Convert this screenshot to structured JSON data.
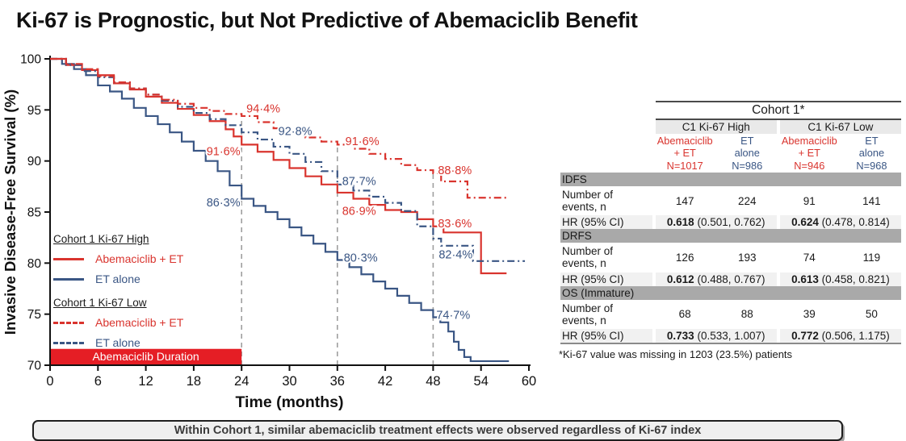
{
  "title": "Ki-67 is Prognostic, but Not Predictive of Abemaciclib Benefit",
  "banner": {
    "text": "Within Cohort 1, similar abemaciclib treatment effects were observed regardless of Ki-67 index"
  },
  "colors": {
    "red": "#d9342e",
    "blue": "#3a5684",
    "duration_bar": "#e51e25",
    "refline": "#9f9f9f",
    "axis": "#111111",
    "section_bg": "#a9a9a9",
    "subheader_bg": "#e9e9e9",
    "hr_row_bg": "#f1f1f1",
    "banner_bg": "#efefef"
  },
  "chart_data": {
    "type": "line",
    "subtype": "kaplan-meier-step",
    "xlabel": "Time (months)",
    "ylabel": "Invasive Disease-Free Survival (%)",
    "xlim": [
      0,
      60
    ],
    "ylim": [
      70,
      100
    ],
    "xticks": [
      0,
      6,
      12,
      18,
      24,
      30,
      36,
      42,
      48,
      54,
      60
    ],
    "yticks": [
      70,
      75,
      80,
      85,
      90,
      95,
      100
    ],
    "grid": false,
    "reflines": [
      {
        "x": 24,
        "top": 94.4
      },
      {
        "x": 36,
        "top": 91.6
      },
      {
        "x": 48,
        "top": 88.8
      }
    ],
    "duration_bar": {
      "label": "Abemaciclib Duration",
      "x_start": 0,
      "x_end": 24,
      "height_pct": 1.6
    },
    "series": [
      {
        "name": "Cohort 1 Ki-67 High — ET alone",
        "color": "blue",
        "dash": "solid",
        "points": [
          [
            0,
            100
          ],
          [
            1.5,
            99.5
          ],
          [
            3,
            99.0
          ],
          [
            4.5,
            98.4
          ],
          [
            6,
            97.4
          ],
          [
            7.5,
            96.8
          ],
          [
            9,
            96.1
          ],
          [
            10.5,
            95.2
          ],
          [
            12,
            94.4
          ],
          [
            13.5,
            93.6
          ],
          [
            15,
            92.8
          ],
          [
            16.5,
            91.9
          ],
          [
            18,
            91.0
          ],
          [
            19.5,
            90.0
          ],
          [
            21,
            89.0
          ],
          [
            22.5,
            87.6
          ],
          [
            24,
            86.3
          ],
          [
            25.5,
            85.6
          ],
          [
            27,
            85.0
          ],
          [
            28.5,
            84.3
          ],
          [
            30,
            83.5
          ],
          [
            31.5,
            82.7
          ],
          [
            33,
            81.9
          ],
          [
            34.5,
            81.1
          ],
          [
            36,
            80.3
          ],
          [
            37.5,
            79.6
          ],
          [
            39,
            78.9
          ],
          [
            40.5,
            78.2
          ],
          [
            42,
            77.5
          ],
          [
            43.5,
            76.8
          ],
          [
            45,
            76.1
          ],
          [
            46.5,
            75.4
          ],
          [
            48,
            74.7
          ],
          [
            48.9,
            74.2
          ],
          [
            49.9,
            73.3
          ],
          [
            50.6,
            72.3
          ],
          [
            51.2,
            71.5
          ],
          [
            51.9,
            70.8
          ],
          [
            52.7,
            70.4
          ],
          [
            57.5,
            70.4
          ]
        ]
      },
      {
        "name": "Cohort 1 Ki-67 High — Abemaciclib + ET",
        "color": "red",
        "dash": "solid",
        "points": [
          [
            0,
            100
          ],
          [
            2,
            99.4
          ],
          [
            4,
            98.9
          ],
          [
            6,
            98.4
          ],
          [
            8,
            97.6
          ],
          [
            10,
            97.0
          ],
          [
            12,
            96.3
          ],
          [
            14,
            95.7
          ],
          [
            16,
            95.1
          ],
          [
            18,
            94.5
          ],
          [
            20,
            93.9
          ],
          [
            22,
            93.1
          ],
          [
            23,
            92.4
          ],
          [
            24,
            91.6
          ],
          [
            26,
            90.9
          ],
          [
            28,
            90.1
          ],
          [
            30,
            89.3
          ],
          [
            32,
            88.5
          ],
          [
            34,
            87.7
          ],
          [
            36,
            86.9
          ],
          [
            38,
            86.3
          ],
          [
            40,
            85.7
          ],
          [
            42,
            85.2
          ],
          [
            44,
            85.0
          ],
          [
            46,
            84.3
          ],
          [
            48,
            83.6
          ],
          [
            49.3,
            83.0
          ],
          [
            54,
            79.0
          ],
          [
            57.2,
            79.0
          ]
        ]
      },
      {
        "name": "Cohort 1 Ki-67 Low — ET alone",
        "color": "blue",
        "dash": "dashed",
        "points": [
          [
            0,
            100
          ],
          [
            2,
            99.4
          ],
          [
            4,
            98.8
          ],
          [
            6,
            98.2
          ],
          [
            8,
            97.7
          ],
          [
            10,
            97.1
          ],
          [
            12,
            96.5
          ],
          [
            14,
            95.9
          ],
          [
            16,
            95.3
          ],
          [
            18,
            94.7
          ],
          [
            20,
            94.1
          ],
          [
            22,
            93.5
          ],
          [
            24,
            92.8
          ],
          [
            26,
            92.1
          ],
          [
            28,
            91.4
          ],
          [
            30,
            90.7
          ],
          [
            32,
            89.9
          ],
          [
            34,
            89.0
          ],
          [
            36,
            87.7
          ],
          [
            38,
            87.1
          ],
          [
            40,
            86.5
          ],
          [
            42,
            85.9
          ],
          [
            44,
            85.1
          ],
          [
            46,
            83.6
          ],
          [
            48,
            82.4
          ],
          [
            49,
            81.7
          ],
          [
            53,
            80.2
          ],
          [
            59.5,
            80.2
          ]
        ]
      },
      {
        "name": "Cohort 1 Ki-67 Low — Abemaciclib + ET",
        "color": "red",
        "dash": "dashed",
        "points": [
          [
            0,
            100
          ],
          [
            2,
            99.5
          ],
          [
            4,
            99.0
          ],
          [
            6,
            98.3
          ],
          [
            8,
            97.7
          ],
          [
            10,
            97.1
          ],
          [
            12,
            96.5
          ],
          [
            14,
            96.0
          ],
          [
            16,
            95.6
          ],
          [
            18,
            95.2
          ],
          [
            20,
            94.9
          ],
          [
            22,
            94.6
          ],
          [
            24,
            94.4
          ],
          [
            26,
            93.8
          ],
          [
            28,
            93.2
          ],
          [
            30,
            92.8
          ],
          [
            32,
            92.3
          ],
          [
            34,
            91.9
          ],
          [
            36,
            91.6
          ],
          [
            38,
            91.2
          ],
          [
            40,
            90.7
          ],
          [
            42,
            90.2
          ],
          [
            44,
            89.6
          ],
          [
            46,
            89.1
          ],
          [
            48,
            88.8
          ],
          [
            49,
            88.0
          ],
          [
            52.3,
            86.4
          ],
          [
            57.5,
            86.4
          ]
        ]
      }
    ],
    "annotations": [
      {
        "text": "94·4%",
        "x": 24.6,
        "y": 95.15,
        "color": "red"
      },
      {
        "text": "92·8%",
        "x": 28.6,
        "y": 92.95,
        "color": "blue"
      },
      {
        "text": "91·6%",
        "x": 19.6,
        "y": 90.95,
        "color": "red"
      },
      {
        "text": "86·3%",
        "x": 19.6,
        "y": 85.95,
        "color": "blue"
      },
      {
        "text": "91·6%",
        "x": 37.0,
        "y": 91.95,
        "color": "red"
      },
      {
        "text": "87·7%",
        "x": 36.6,
        "y": 88.05,
        "color": "blue"
      },
      {
        "text": "86·9%",
        "x": 36.6,
        "y": 85.1,
        "color": "red"
      },
      {
        "text": "80·3%",
        "x": 36.8,
        "y": 80.55,
        "color": "blue"
      },
      {
        "text": "88·8%",
        "x": 48.6,
        "y": 89.1,
        "color": "red"
      },
      {
        "text": "83·6%",
        "x": 48.6,
        "y": 83.9,
        "color": "red"
      },
      {
        "text": "82·4%",
        "x": 48.7,
        "y": 80.85,
        "color": "blue"
      },
      {
        "text": "74·7%",
        "x": 48.4,
        "y": 74.95,
        "color": "blue"
      }
    ],
    "legend": {
      "groups": [
        {
          "title": "Cohort 1 Ki-67 High",
          "items": [
            {
              "label": "Abemaciclib + ET",
              "color": "red",
              "dash": "solid"
            },
            {
              "label": "ET alone",
              "color": "blue",
              "dash": "solid"
            }
          ]
        },
        {
          "title": "Cohort 1 Ki-67 Low",
          "items": [
            {
              "label": "Abemaciclib + ET",
              "color": "red",
              "dash": "dashed"
            },
            {
              "label": "ET alone",
              "color": "blue",
              "dash": "dashed"
            }
          ]
        }
      ]
    }
  },
  "table": {
    "title": "Cohort 1*",
    "groups": [
      {
        "label": "C1 Ki-67 High"
      },
      {
        "label": "C1 Ki-67 Low"
      }
    ],
    "columns": [
      {
        "lines": [
          "Abemaciclib",
          "+ ET"
        ],
        "n": "N=1017",
        "color": "red"
      },
      {
        "lines": [
          "ET",
          "alone"
        ],
        "n": "N=986",
        "color": "blue"
      },
      {
        "lines": [
          "Abemaciclib",
          "+ ET"
        ],
        "n": "N=946",
        "color": "red"
      },
      {
        "lines": [
          "ET",
          "alone"
        ],
        "n": "N=968",
        "color": "blue"
      }
    ],
    "row_labels": {
      "events": "Number of events, n",
      "hr": "HR (95% CI)"
    },
    "sections": [
      {
        "name": "IDFS",
        "events": [
          "147",
          "224",
          "91",
          "141"
        ],
        "hr": [
          {
            "v": "0.618",
            "ci": "(0.501, 0.762)"
          },
          {
            "v": "0.624",
            "ci": "(0.478, 0.814)"
          }
        ]
      },
      {
        "name": "DRFS",
        "events": [
          "126",
          "193",
          "74",
          "119"
        ],
        "hr": [
          {
            "v": "0.612",
            "ci": "(0.488, 0.767)"
          },
          {
            "v": "0.613",
            "ci": "(0.458, 0.821)"
          }
        ]
      },
      {
        "name": "OS (Immature)",
        "events": [
          "68",
          "88",
          "39",
          "50"
        ],
        "hr": [
          {
            "v": "0.733",
            "ci": "(0.533, 1.007)"
          },
          {
            "v": "0.772",
            "ci": "(0.506, 1.175)"
          }
        ]
      }
    ],
    "footnote": "*Ki-67 value was missing in 1203 (23.5%) patients"
  }
}
